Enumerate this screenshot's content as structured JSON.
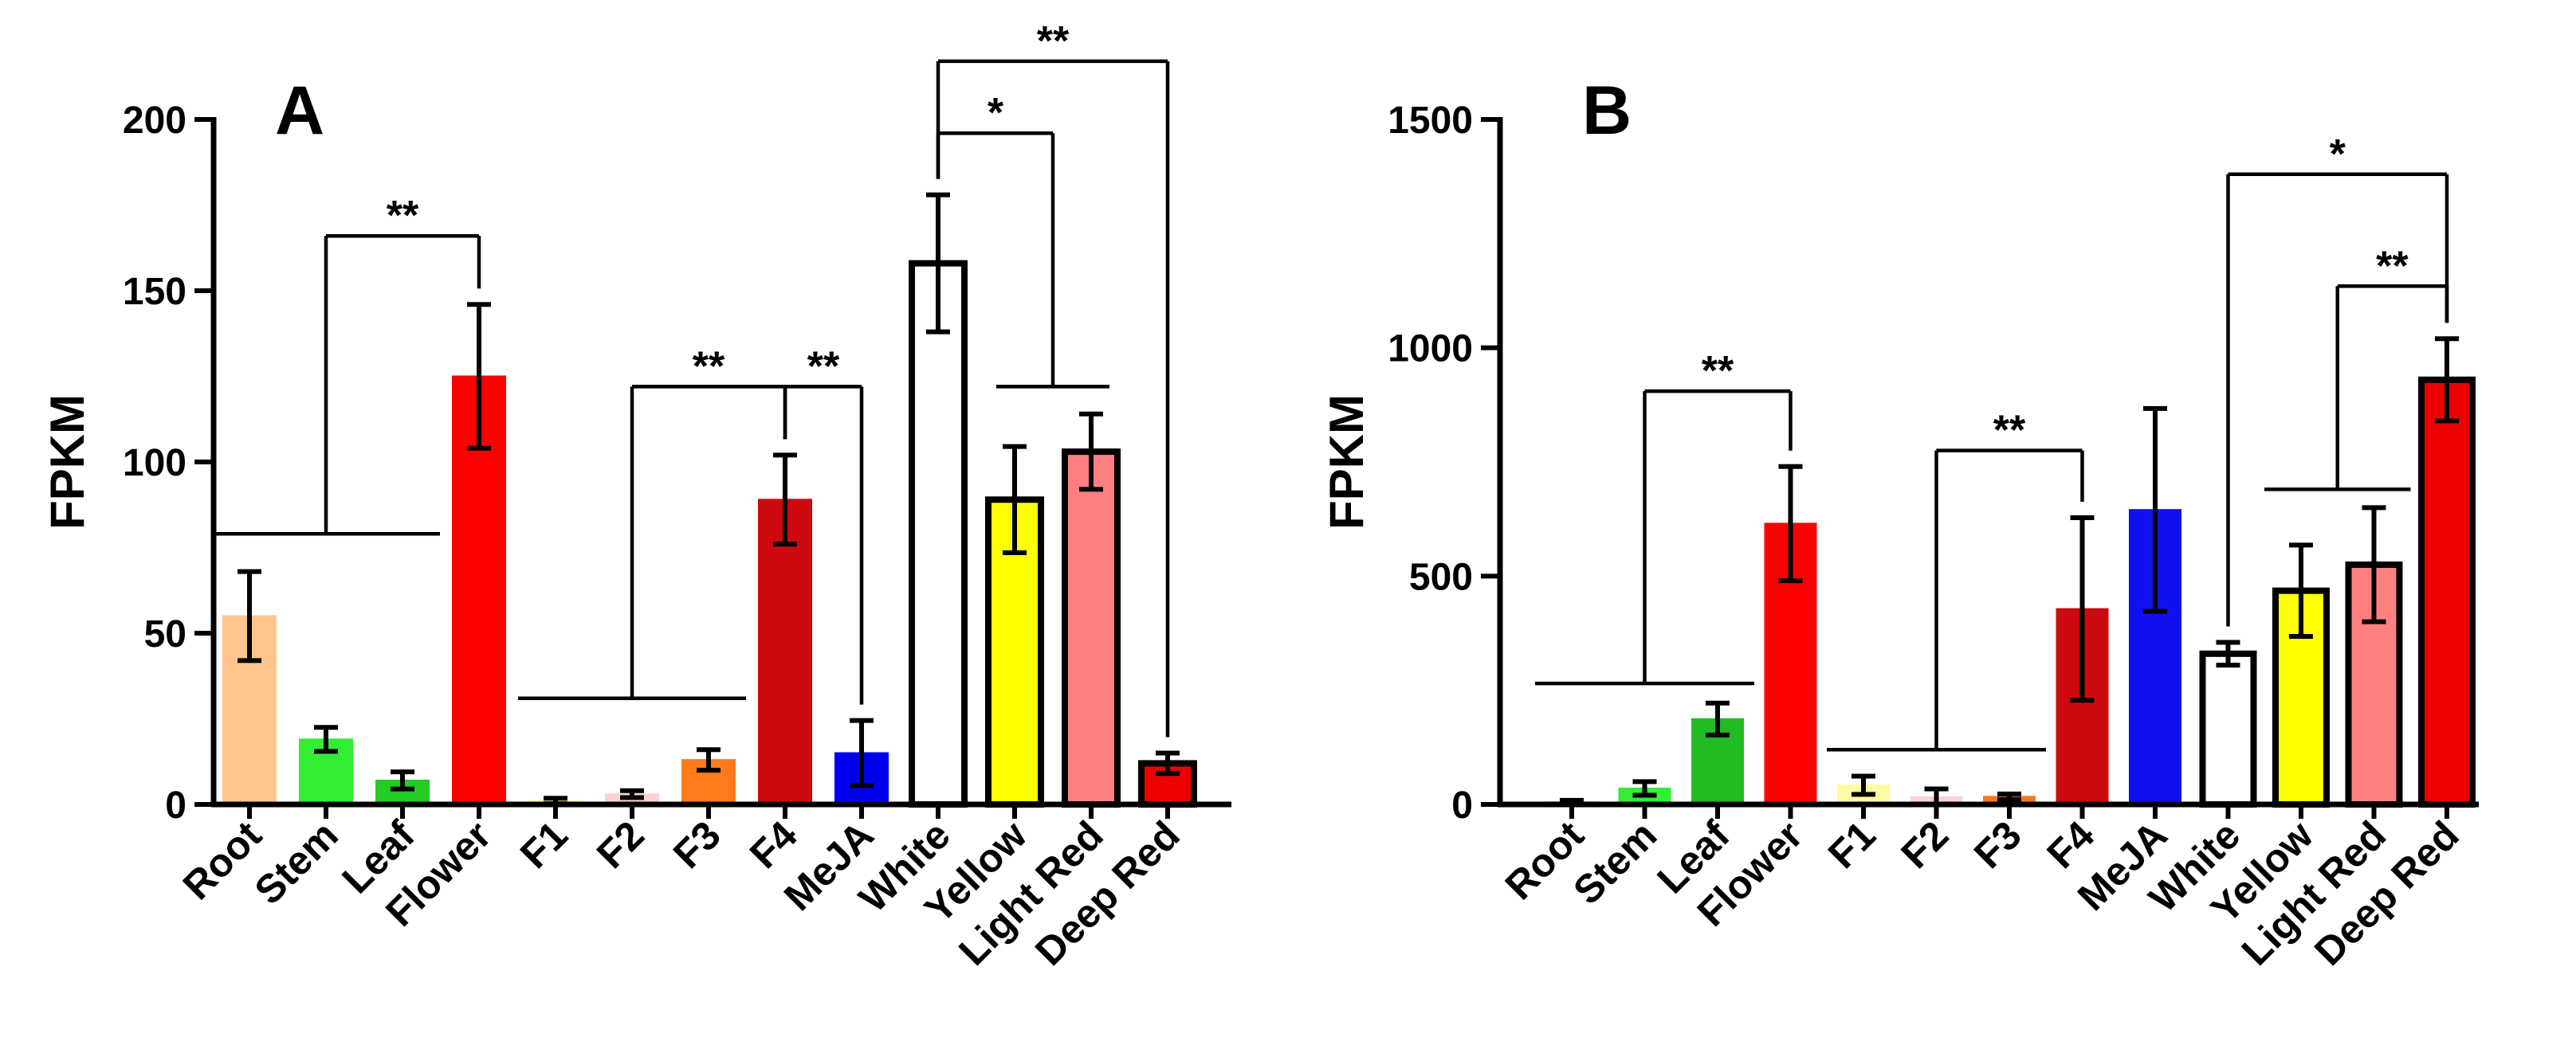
{
  "chart_data": [
    {
      "type": "bar",
      "panel_label": "A",
      "ylabel": "FPKM",
      "xlabel": "",
      "ylim": [
        0,
        200
      ],
      "yticks": [
        "0",
        "50",
        "100",
        "150",
        "200"
      ],
      "categories": [
        "Root",
        "Stem",
        "Leaf",
        "Flower",
        "F1",
        "F2",
        "F3",
        "F4",
        "MeJA",
        "White",
        "Yellow",
        "Light Red",
        "Deep Red"
      ],
      "values": [
        55,
        19,
        7,
        125,
        1,
        3,
        13,
        89,
        15,
        158,
        89,
        103,
        12
      ],
      "errors": [
        13,
        3.5,
        2.5,
        21,
        0.8,
        1,
        3,
        13,
        9.5,
        20,
        15.5,
        11,
        3
      ],
      "colors": [
        "#ffc58d",
        "#33ee33",
        "#22cc22",
        "#ff0000",
        "#fffaa0",
        "#ffd2d2",
        "#ff7a1a",
        "#cc0a10",
        "#0000ee",
        "#ffffff",
        "#ffff00",
        "#ff8080",
        "#ee0000"
      ],
      "thick_outline": [
        false,
        false,
        false,
        false,
        false,
        false,
        false,
        false,
        false,
        true,
        true,
        true,
        true
      ],
      "significance": [
        {
          "label": "**",
          "from_group": [
            0,
            2
          ],
          "to": 3,
          "left_drop_level": 79,
          "top_level": 166
        },
        {
          "label": "**",
          "from_group": [
            4,
            6
          ],
          "to": 7,
          "left_drop_level": 31,
          "top_level": 122
        },
        {
          "label": "**",
          "from": 7,
          "to": 8,
          "top_level": 122
        },
        {
          "label": "*",
          "from": 9,
          "to_group": [
            10,
            11
          ],
          "top_level": 196,
          "right_drop_level": 122
        },
        {
          "label": "**",
          "from": 9,
          "to": 12,
          "top_level": 217
        }
      ]
    },
    {
      "type": "bar",
      "panel_label": "B",
      "ylabel": "FPKM",
      "xlabel": "",
      "ylim": [
        0,
        1500
      ],
      "yticks": [
        "0",
        "500",
        "1000",
        "1500"
      ],
      "categories": [
        "Root",
        "Stem",
        "Leaf",
        "Flower",
        "F1",
        "F2",
        "F3",
        "F4",
        "MeJA",
        "White",
        "Yellow",
        "Light Red",
        "Deep Red"
      ],
      "values": [
        5,
        35,
        187,
        615,
        42,
        16,
        17,
        428,
        645,
        330,
        468,
        525,
        930
      ],
      "errors": [
        4,
        15,
        35,
        125,
        20,
        18,
        6,
        200,
        222,
        25,
        100,
        125,
        90
      ],
      "colors": [
        "#ffc58d",
        "#33ee33",
        "#22bb22",
        "#ff0000",
        "#fffaa0",
        "#ffd2d2",
        "#ff7a1a",
        "#cc0a10",
        "#1010ee",
        "#ffffff",
        "#ffff00",
        "#ff8080",
        "#ee0000"
      ],
      "thick_outline": [
        false,
        false,
        false,
        false,
        false,
        false,
        false,
        false,
        false,
        true,
        true,
        true,
        true
      ],
      "significance": [
        {
          "label": "**",
          "from_group": [
            0,
            2
          ],
          "to": 3,
          "left_drop_level": 265,
          "top_level": 905
        },
        {
          "label": "**",
          "from_group": [
            4,
            6
          ],
          "to": 7,
          "left_drop_level": 120,
          "top_level": 775
        },
        {
          "label": "*",
          "from": 9,
          "to": 12,
          "top_level": 1380
        },
        {
          "label": "**",
          "from_group": [
            10,
            11
          ],
          "to": 12,
          "left_drop_level": 690,
          "top_level": 1135
        }
      ]
    }
  ]
}
